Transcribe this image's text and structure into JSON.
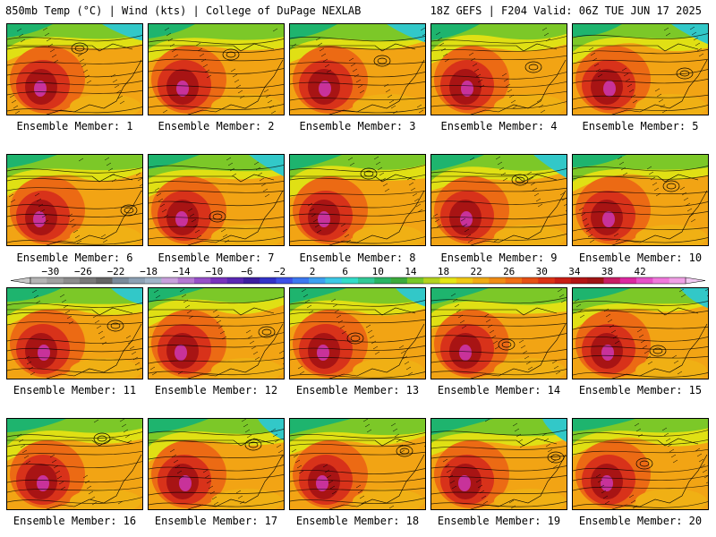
{
  "header": {
    "left": "850mb Temp (°C) | Wind (kts) | College of DuPage NEXLAB",
    "right": "18Z GEFS | F204 Valid: 06Z TUE JUN 17 2025"
  },
  "panels": [
    {
      "label": "Ensemble Member: 1"
    },
    {
      "label": "Ensemble Member: 2"
    },
    {
      "label": "Ensemble Member: 3"
    },
    {
      "label": "Ensemble Member: 4"
    },
    {
      "label": "Ensemble Member: 5"
    },
    {
      "label": "Ensemble Member: 6"
    },
    {
      "label": "Ensemble Member: 7"
    },
    {
      "label": "Ensemble Member: 8"
    },
    {
      "label": "Ensemble Member: 9"
    },
    {
      "label": "Ensemble Member: 10"
    },
    {
      "label": "Ensemble Member: 11"
    },
    {
      "label": "Ensemble Member: 12"
    },
    {
      "label": "Ensemble Member: 13"
    },
    {
      "label": "Ensemble Member: 14"
    },
    {
      "label": "Ensemble Member: 15"
    },
    {
      "label": "Ensemble Member: 16"
    },
    {
      "label": "Ensemble Member: 17"
    },
    {
      "label": "Ensemble Member: 18"
    },
    {
      "label": "Ensemble Member: 19"
    },
    {
      "label": "Ensemble Member: 20"
    }
  ],
  "colorbar": {
    "ticks": [
      "−30",
      "−26",
      "−22",
      "−18",
      "−14",
      "−10",
      "−6",
      "−2",
      "2",
      "6",
      "10",
      "14",
      "18",
      "22",
      "26",
      "30",
      "34",
      "38",
      "42"
    ],
    "colors": [
      "#b4b4b4",
      "#a0a0a0",
      "#8c8c8c",
      "#787878",
      "#646464",
      "#7a8a9a",
      "#8ca0b4",
      "#a0b4c8",
      "#c8a0dc",
      "#b478d2",
      "#9650c8",
      "#7832be",
      "#5a28b4",
      "#3c1ea0",
      "#3232c8",
      "#3c50e6",
      "#3c78f0",
      "#3ca0f0",
      "#3cc8e6",
      "#32dcc8",
      "#32c896",
      "#28b464",
      "#3caa3c",
      "#78c828",
      "#b4d21e",
      "#e6e614",
      "#f0c814",
      "#f0aa14",
      "#f08c14",
      "#f06e14",
      "#e65014",
      "#dc3214",
      "#c81e14",
      "#b41414",
      "#a01414",
      "#c81e64",
      "#dc28a0",
      "#e650c8",
      "#f078dc",
      "#f0a0e6"
    ]
  }
}
